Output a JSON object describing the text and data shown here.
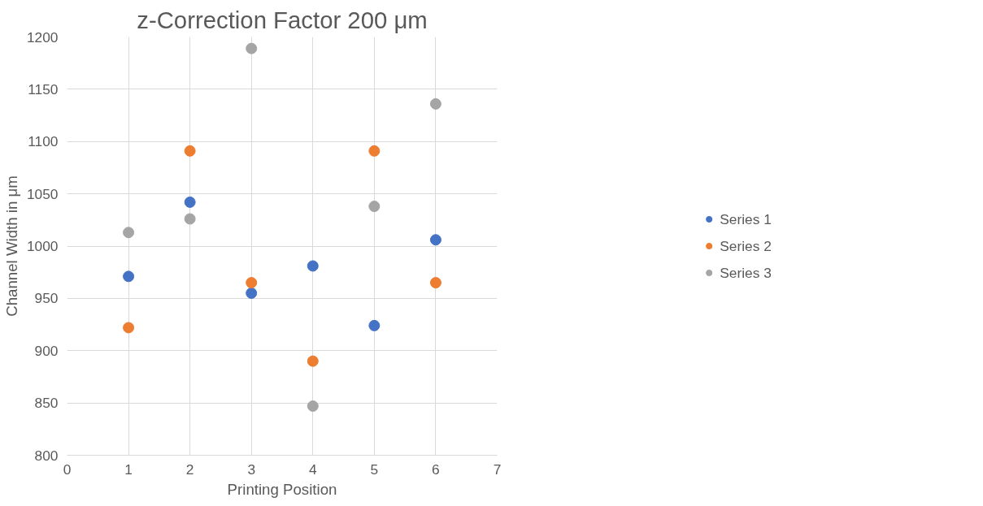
{
  "chart_data": {
    "type": "scatter",
    "title": "z-Correction Factor 200 μm",
    "xlabel": "Printing Position",
    "ylabel": "Channel Width in μm",
    "x": [
      1,
      2,
      3,
      4,
      5,
      6
    ],
    "series": [
      {
        "name": "Series 1",
        "color": "#4472c4",
        "values": [
          971,
          1042,
          955,
          981,
          924,
          1006
        ]
      },
      {
        "name": "Series 2",
        "color": "#ed7d31",
        "values": [
          922,
          1091,
          965,
          890,
          1091,
          965
        ]
      },
      {
        "name": "Series 3",
        "color": "#a5a5a5",
        "values": [
          1013,
          1026,
          1189,
          847,
          1038,
          1136
        ]
      }
    ],
    "xlim": [
      0,
      7
    ],
    "xticks": [
      0,
      1,
      2,
      3,
      4,
      5,
      6,
      7
    ],
    "ylim": [
      800,
      1200
    ],
    "yticks": [
      800,
      850,
      900,
      950,
      1000,
      1050,
      1100,
      1150,
      1200
    ],
    "grid": true,
    "legend": "right",
    "marker": "circle"
  }
}
